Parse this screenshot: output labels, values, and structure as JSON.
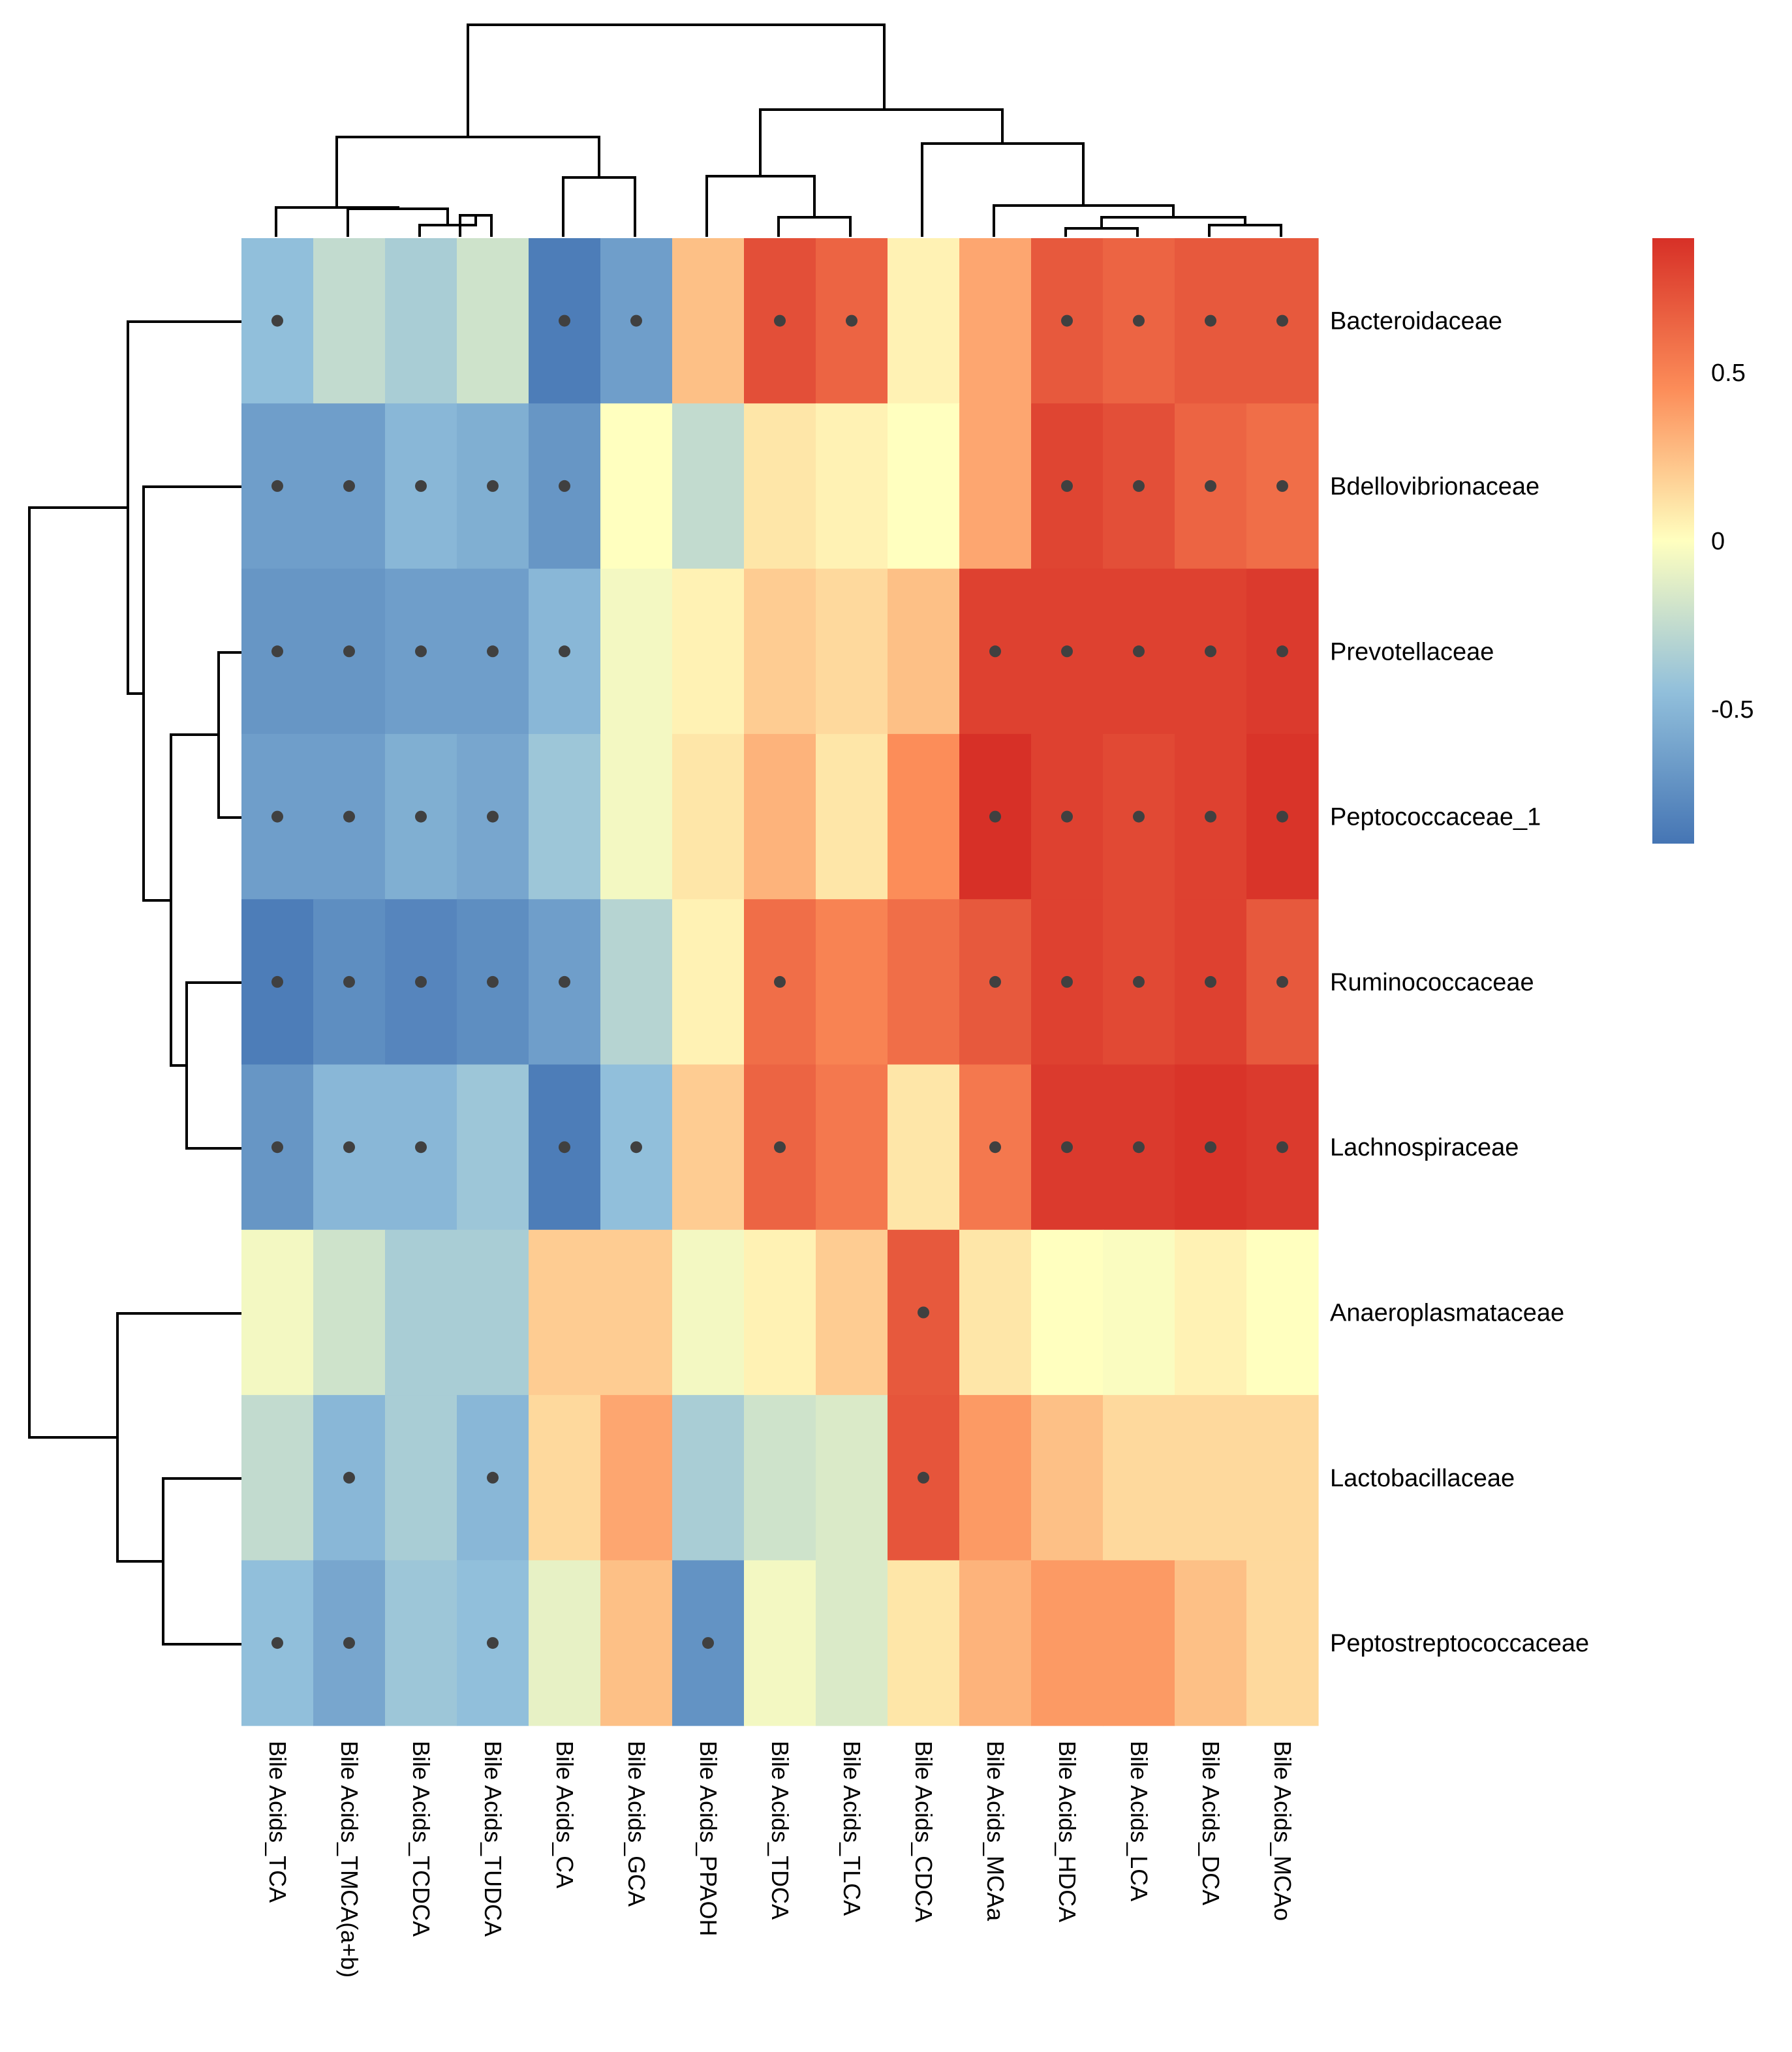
{
  "chart_data": {
    "type": "heatmap",
    "title": "",
    "rows": [
      "Bacteroidaceae",
      "Bdellovibrionaceae",
      "Prevotellaceae",
      "Peptococcaceae_1",
      "Ruminococcaceae",
      "Lachnospiraceae",
      "Anaeroplasmataceae",
      "Lactobacillaceae",
      "Peptostreptococcaceae"
    ],
    "columns": [
      "Bile Acids_TCA",
      "Bile Acids_TMCA(a+b)",
      "Bile Acids_TCDCA",
      "Bile Acids_TUDCA",
      "Bile Acids_CA",
      "Bile Acids_GCA",
      "Bile Acids_PPAOH",
      "Bile Acids_TDCA",
      "Bile Acids_TLCA",
      "Bile Acids_CDCA",
      "Bile Acids_MCAa",
      "Bile Acids_HDCA",
      "Bile Acids_LCA",
      "Bile Acids_DCA",
      "Bile Acids_MCAo"
    ],
    "values": [
      [
        -0.45,
        -0.25,
        -0.35,
        -0.2,
        -0.85,
        -0.65,
        0.25,
        0.75,
        0.65,
        0.05,
        0.35,
        0.7,
        0.65,
        0.7,
        0.7
      ],
      [
        -0.65,
        -0.65,
        -0.5,
        -0.55,
        -0.7,
        0.0,
        -0.25,
        0.1,
        0.05,
        0.0,
        0.35,
        0.8,
        0.75,
        0.65,
        0.6
      ],
      [
        -0.7,
        -0.7,
        -0.65,
        -0.65,
        -0.5,
        -0.05,
        0.05,
        0.2,
        0.15,
        0.25,
        0.82,
        0.82,
        0.82,
        0.82,
        0.85
      ],
      [
        -0.65,
        -0.65,
        -0.55,
        -0.6,
        -0.4,
        -0.05,
        0.1,
        0.3,
        0.1,
        0.45,
        0.9,
        0.82,
        0.78,
        0.82,
        0.88
      ],
      [
        -0.85,
        -0.75,
        -0.8,
        -0.75,
        -0.65,
        -0.3,
        0.05,
        0.6,
        0.5,
        0.6,
        0.7,
        0.82,
        0.78,
        0.82,
        0.7
      ],
      [
        -0.7,
        -0.5,
        -0.5,
        -0.4,
        -0.85,
        -0.45,
        0.2,
        0.65,
        0.55,
        0.1,
        0.55,
        0.85,
        0.85,
        0.88,
        0.85
      ],
      [
        -0.05,
        -0.2,
        -0.35,
        -0.35,
        0.2,
        0.2,
        -0.05,
        0.05,
        0.2,
        0.7,
        0.1,
        0.0,
        -0.02,
        0.05,
        0.0
      ],
      [
        -0.25,
        -0.5,
        -0.35,
        -0.5,
        0.15,
        0.35,
        -0.35,
        -0.2,
        -0.15,
        0.72,
        0.4,
        0.25,
        0.15,
        0.15,
        0.15
      ],
      [
        -0.45,
        -0.6,
        -0.4,
        -0.45,
        -0.1,
        0.25,
        -0.72,
        -0.05,
        -0.15,
        0.1,
        0.3,
        0.4,
        0.4,
        0.25,
        0.15
      ]
    ],
    "significant": [
      [
        1,
        0,
        0,
        0,
        1,
        1,
        0,
        1,
        1,
        0,
        0,
        1,
        1,
        1,
        1
      ],
      [
        1,
        1,
        1,
        1,
        1,
        0,
        0,
        0,
        0,
        0,
        0,
        1,
        1,
        1,
        1
      ],
      [
        1,
        1,
        1,
        1,
        1,
        0,
        0,
        0,
        0,
        0,
        1,
        1,
        1,
        1,
        1
      ],
      [
        1,
        1,
        1,
        1,
        0,
        0,
        0,
        0,
        0,
        0,
        1,
        1,
        1,
        1,
        1
      ],
      [
        1,
        1,
        1,
        1,
        1,
        0,
        0,
        1,
        0,
        0,
        1,
        1,
        1,
        1,
        1
      ],
      [
        1,
        1,
        1,
        0,
        1,
        1,
        0,
        1,
        0,
        0,
        1,
        1,
        1,
        1,
        1
      ],
      [
        0,
        0,
        0,
        0,
        0,
        0,
        0,
        0,
        0,
        1,
        0,
        0,
        0,
        0,
        0
      ],
      [
        0,
        1,
        0,
        1,
        0,
        0,
        0,
        0,
        0,
        1,
        0,
        0,
        0,
        0,
        0
      ],
      [
        1,
        1,
        0,
        1,
        0,
        0,
        1,
        0,
        0,
        0,
        0,
        0,
        0,
        0,
        0
      ]
    ],
    "legend": {
      "ticks": [
        {
          "value": 0.5,
          "label": "0.5"
        },
        {
          "value": 0,
          "label": "0"
        },
        {
          "value": -0.5,
          "label": "-0.5"
        }
      ],
      "range": [
        -0.9,
        0.9
      ],
      "colors": [
        "#4575b4",
        "#91bfdb",
        "#ffffbf",
        "#fc8d59",
        "#d73027"
      ],
      "placement": "right"
    },
    "marker_color": "#404040"
  }
}
